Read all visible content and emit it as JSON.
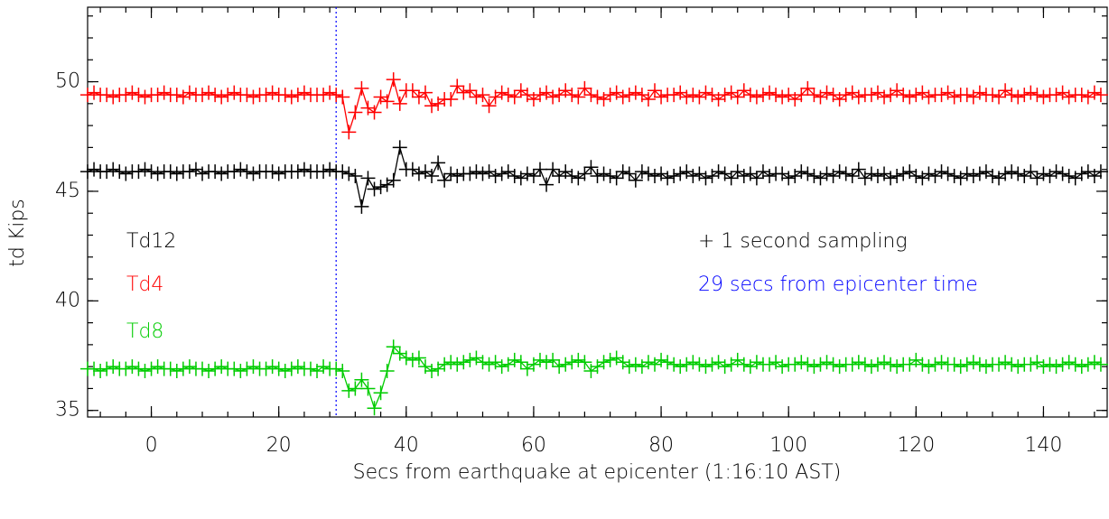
{
  "chart_data": {
    "type": "line",
    "xlabel": "Secs from earthquake at epicenter (1:16:10 AST)",
    "ylabel": "td Kips",
    "xlim": [
      -10,
      150
    ],
    "ylim": [
      34.7,
      53.4
    ],
    "xticks": [
      0,
      20,
      40,
      60,
      80,
      100,
      120,
      140
    ],
    "yticks": [
      35,
      40,
      45,
      50
    ],
    "minor_subdivisions": 5,
    "marker": "+",
    "vline": {
      "x": 29,
      "color": "#0000ff"
    },
    "annotations": [
      {
        "text": "+ 1 second sampling",
        "color": "#000000"
      },
      {
        "text": "29 secs from epicenter time",
        "color": "#0000ff"
      }
    ],
    "x": [
      -10,
      -9,
      -8,
      -7,
      -6,
      -5,
      -4,
      -3,
      -2,
      -1,
      0,
      1,
      2,
      3,
      4,
      5,
      6,
      7,
      8,
      9,
      10,
      11,
      12,
      13,
      14,
      15,
      16,
      17,
      18,
      19,
      20,
      21,
      22,
      23,
      24,
      25,
      26,
      27,
      28,
      29,
      30,
      31,
      32,
      33,
      34,
      35,
      36,
      37,
      38,
      39,
      40,
      41,
      42,
      43,
      44,
      45,
      46,
      47,
      48,
      49,
      50,
      51,
      52,
      53,
      54,
      55,
      56,
      57,
      58,
      59,
      60,
      61,
      62,
      63,
      64,
      65,
      66,
      67,
      68,
      69,
      70,
      71,
      72,
      73,
      74,
      75,
      76,
      77,
      78,
      79,
      80,
      81,
      82,
      83,
      84,
      85,
      86,
      87,
      88,
      89,
      90,
      91,
      92,
      93,
      94,
      95,
      96,
      97,
      98,
      99,
      100,
      101,
      102,
      103,
      104,
      105,
      106,
      107,
      108,
      109,
      110,
      111,
      112,
      113,
      114,
      115,
      116,
      117,
      118,
      119,
      120,
      121,
      122,
      123,
      124,
      125,
      126,
      127,
      128,
      129,
      130,
      131,
      132,
      133,
      134,
      135,
      136,
      137,
      138,
      139,
      140,
      141,
      142,
      143,
      144,
      145,
      146,
      147,
      148,
      149
    ],
    "series": [
      {
        "name": "Td12",
        "color": "#000000",
        "values": [
          45.9,
          46.0,
          45.9,
          45.9,
          46.0,
          45.9,
          45.8,
          45.9,
          45.9,
          46.0,
          45.9,
          45.8,
          45.9,
          45.9,
          45.8,
          45.9,
          45.9,
          46.0,
          45.8,
          45.9,
          45.9,
          45.8,
          45.9,
          45.9,
          46.0,
          45.9,
          45.8,
          45.9,
          45.9,
          45.9,
          45.8,
          45.9,
          45.9,
          45.9,
          46.0,
          45.9,
          45.9,
          45.9,
          46.0,
          45.9,
          45.9,
          45.8,
          45.7,
          44.3,
          45.6,
          45.1,
          45.2,
          45.3,
          45.5,
          47.0,
          46.0,
          46.0,
          45.8,
          45.9,
          45.7,
          46.3,
          45.5,
          45.8,
          45.7,
          45.8,
          45.8,
          45.9,
          45.8,
          45.9,
          45.7,
          45.8,
          45.9,
          45.7,
          45.6,
          45.8,
          45.7,
          46.0,
          45.3,
          46.0,
          45.7,
          45.9,
          45.7,
          45.6,
          45.8,
          46.1,
          45.7,
          45.8,
          45.7,
          45.6,
          45.9,
          45.8,
          45.5,
          45.9,
          45.8,
          45.7,
          45.8,
          45.6,
          45.7,
          45.8,
          45.9,
          45.7,
          45.8,
          45.6,
          45.7,
          45.9,
          45.8,
          45.6,
          45.9,
          45.7,
          45.8,
          45.6,
          45.9,
          45.7,
          45.8,
          45.8,
          45.6,
          45.7,
          45.9,
          45.8,
          45.7,
          45.6,
          45.8,
          45.7,
          45.9,
          45.8,
          45.7,
          46.0,
          45.6,
          45.8,
          45.7,
          45.8,
          45.6,
          45.7,
          45.8,
          45.9,
          45.7,
          45.6,
          45.8,
          45.7,
          45.9,
          45.8,
          45.7,
          45.6,
          45.8,
          45.7,
          45.8,
          45.9,
          45.7,
          45.6,
          45.8,
          45.9,
          45.8,
          45.7,
          45.9,
          45.6,
          45.8,
          45.7,
          45.9,
          45.8,
          45.7,
          45.6,
          45.8,
          45.9,
          45.7,
          45.9
        ]
      },
      {
        "name": "Td4",
        "color": "#ff0000",
        "values": [
          49.4,
          49.5,
          49.4,
          49.4,
          49.3,
          49.4,
          49.4,
          49.5,
          49.4,
          49.3,
          49.4,
          49.4,
          49.5,
          49.4,
          49.4,
          49.3,
          49.5,
          49.4,
          49.4,
          49.5,
          49.4,
          49.3,
          49.4,
          49.5,
          49.4,
          49.4,
          49.3,
          49.4,
          49.4,
          49.5,
          49.4,
          49.4,
          49.3,
          49.4,
          49.5,
          49.4,
          49.4,
          49.4,
          49.5,
          49.4,
          49.3,
          47.7,
          48.6,
          49.7,
          48.8,
          48.6,
          49.3,
          49.1,
          50.1,
          49.0,
          49.6,
          49.6,
          49.3,
          49.5,
          48.9,
          49.0,
          49.2,
          49.2,
          49.8,
          49.5,
          49.6,
          49.3,
          49.4,
          48.9,
          49.3,
          49.5,
          49.4,
          49.3,
          49.6,
          49.4,
          49.2,
          49.4,
          49.5,
          49.3,
          49.4,
          49.6,
          49.4,
          49.3,
          49.7,
          49.4,
          49.3,
          49.2,
          49.4,
          49.5,
          49.3,
          49.4,
          49.5,
          49.4,
          49.2,
          49.6,
          49.3,
          49.4,
          49.4,
          49.5,
          49.3,
          49.4,
          49.3,
          49.5,
          49.4,
          49.2,
          49.4,
          49.5,
          49.3,
          49.6,
          49.4,
          49.3,
          49.4,
          49.5,
          49.4,
          49.3,
          49.4,
          49.2,
          49.4,
          49.7,
          49.4,
          49.3,
          49.5,
          49.4,
          49.2,
          49.4,
          49.5,
          49.3,
          49.4,
          49.4,
          49.5,
          49.3,
          49.4,
          49.6,
          49.4,
          49.3,
          49.4,
          49.5,
          49.3,
          49.4,
          49.4,
          49.5,
          49.3,
          49.4,
          49.4,
          49.3,
          49.5,
          49.4,
          49.4,
          49.3,
          49.6,
          49.4,
          49.3,
          49.4,
          49.5,
          49.4,
          49.3,
          49.4,
          49.4,
          49.5,
          49.3,
          49.4,
          49.4,
          49.3,
          49.5,
          49.4
        ]
      },
      {
        "name": "Td8",
        "color": "#00cc00",
        "values": [
          36.9,
          36.9,
          36.8,
          36.9,
          37.0,
          36.9,
          36.9,
          37.0,
          36.9,
          36.8,
          36.9,
          37.0,
          36.9,
          36.9,
          36.8,
          36.9,
          37.0,
          36.9,
          36.9,
          36.8,
          36.9,
          37.0,
          36.9,
          36.9,
          36.8,
          36.9,
          37.0,
          36.9,
          36.9,
          37.0,
          36.9,
          36.8,
          36.9,
          37.0,
          36.9,
          36.9,
          36.8,
          37.0,
          36.9,
          36.9,
          36.8,
          35.9,
          36.0,
          36.4,
          36.0,
          35.1,
          35.8,
          36.8,
          37.9,
          37.6,
          37.4,
          37.3,
          37.4,
          37.0,
          36.8,
          36.9,
          37.1,
          37.2,
          37.1,
          37.2,
          37.3,
          37.4,
          37.2,
          37.1,
          37.2,
          37.0,
          37.1,
          37.3,
          37.2,
          36.9,
          37.1,
          37.3,
          37.2,
          37.3,
          37.0,
          37.1,
          37.2,
          37.3,
          37.2,
          36.8,
          37.0,
          37.2,
          37.3,
          37.4,
          37.2,
          37.0,
          37.1,
          37.0,
          37.2,
          37.1,
          37.3,
          37.2,
          37.1,
          37.0,
          37.1,
          37.2,
          37.1,
          37.0,
          37.1,
          37.2,
          37.0,
          37.1,
          37.3,
          37.1,
          37.0,
          37.2,
          37.1,
          37.1,
          37.2,
          37.0,
          37.1,
          37.1,
          37.2,
          37.1,
          37.0,
          37.1,
          37.2,
          37.1,
          37.0,
          37.1,
          37.1,
          37.2,
          37.1,
          37.0,
          37.1,
          37.2,
          37.1,
          37.0,
          37.1,
          37.1,
          37.3,
          37.1,
          37.0,
          37.1,
          37.2,
          37.1,
          37.1,
          37.0,
          37.1,
          37.2,
          37.1,
          37.0,
          37.1,
          37.1,
          37.2,
          37.1,
          37.0,
          37.1,
          37.1,
          37.2,
          37.0,
          37.1,
          37.0,
          37.1,
          37.2,
          37.1,
          37.0,
          37.1,
          37.2,
          37.1
        ]
      }
    ]
  }
}
